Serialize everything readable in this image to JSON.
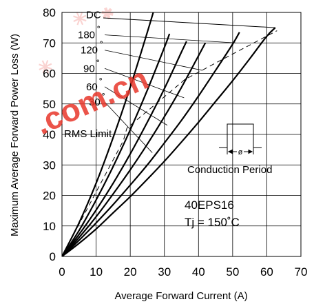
{
  "chart_data": {
    "type": "line",
    "xlabel": "Average Forward Current (A)",
    "ylabel": "Maximum Average Forward Power Loss (W)",
    "xlim": [
      0,
      70
    ],
    "ylim": [
      0,
      80
    ],
    "x_ticks": [
      "0",
      "10",
      "20",
      "30",
      "40",
      "50",
      "60",
      "70"
    ],
    "y_ticks": [
      "0",
      "10",
      "20",
      "30",
      "40",
      "50",
      "60",
      "70",
      "80"
    ],
    "grid": true,
    "series": [
      {
        "name": "DC",
        "x": [
          0,
          5,
          10,
          15,
          20,
          25,
          30,
          35,
          40,
          45,
          50,
          55,
          60,
          62.5
        ],
        "y": [
          0,
          4.3,
          9.0,
          14.3,
          19.6,
          25.3,
          31.2,
          37.5,
          44.0,
          50.8,
          57.6,
          64.8,
          72.2,
          75
        ]
      },
      {
        "name": "180°",
        "x": [
          0,
          5,
          10,
          15,
          20,
          25,
          30,
          35,
          40,
          45,
          50,
          52
        ],
        "y": [
          0,
          5.3,
          11.0,
          17.0,
          23.4,
          30.0,
          37.2,
          44.6,
          52.6,
          61.0,
          69.6,
          73.5
        ]
      },
      {
        "name": "120°",
        "x": [
          0,
          5,
          10,
          15,
          20,
          25,
          30,
          35,
          40,
          42
        ],
        "y": [
          0,
          6.2,
          13.0,
          20.5,
          28.4,
          36.8,
          45.8,
          55.4,
          65.8,
          70.0
        ]
      },
      {
        "name": "90°",
        "x": [
          0,
          5,
          10,
          15,
          20,
          25,
          30,
          35,
          36.5
        ],
        "y": [
          0,
          7.2,
          15.2,
          24.0,
          33.6,
          44.0,
          55.0,
          67.0,
          70.5
        ]
      },
      {
        "name": "60°",
        "x": [
          0,
          5,
          10,
          15,
          20,
          25,
          30,
          31.5
        ],
        "y": [
          0,
          8.5,
          18.5,
          29.5,
          41.5,
          54.5,
          68.5,
          73.0
        ]
      },
      {
        "name": "30°",
        "x": [
          0,
          5,
          10,
          15,
          20,
          25,
          27
        ],
        "y": [
          0,
          11.0,
          24.0,
          39.0,
          55.5,
          73.5,
          81.0
        ]
      }
    ],
    "rms_limit": {
      "label": "RMS Limit",
      "x": [
        0,
        18,
        19,
        36,
        46,
        63
      ],
      "y": [
        0,
        38,
        42,
        58,
        64,
        74
      ]
    },
    "annotations": {
      "legend_prefix": "DC",
      "conduction_label": "Conduction Period",
      "phi_symbol": "ø",
      "device": "40EPS16",
      "tj": "Tj = 150˚C"
    },
    "angle_labels": [
      "180",
      "120",
      "90",
      "60",
      "30"
    ],
    "degree_symbol": "˚",
    "watermark": ".com.cn",
    "colors": {
      "lines": "#000000",
      "grid": "#000000",
      "watermark": "#e8372b"
    }
  }
}
